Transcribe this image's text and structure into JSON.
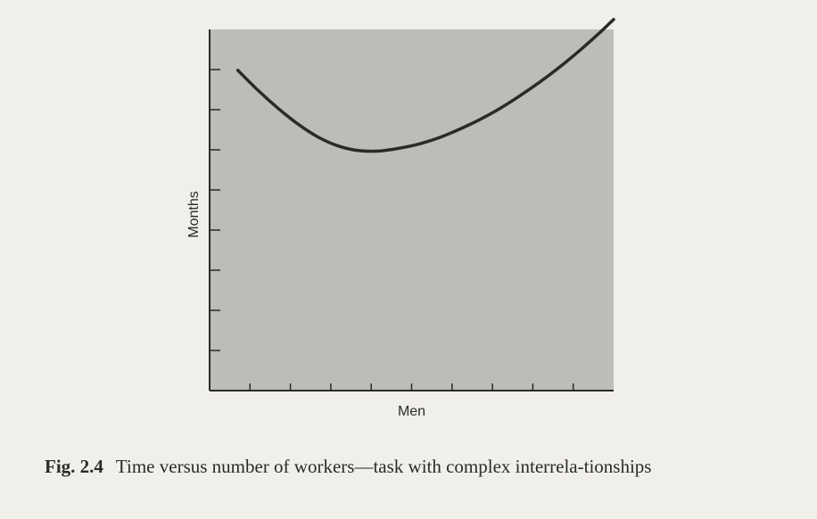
{
  "figure": {
    "number": "Fig. 2.4",
    "caption": "Time versus number of workers—task with complex interrela-tionships"
  },
  "colors": {
    "page_background": "#f1efe9",
    "plot_background": "#bdbcb7",
    "curve": "#2a2a2a",
    "axis": "#2a2a2a"
  },
  "chart_data": {
    "type": "line",
    "title": "",
    "xlabel": "Men",
    "ylabel": "Months",
    "xlim": [
      0,
      10
    ],
    "ylim": [
      0,
      9
    ],
    "x_ticks": [
      1,
      2,
      3,
      4,
      5,
      6,
      7,
      8,
      9
    ],
    "y_ticks": [
      1,
      2,
      3,
      4,
      5,
      6,
      7,
      8
    ],
    "grid": false,
    "legend": "none",
    "series": [
      {
        "x": [
          0.7,
          1.2,
          1.7,
          2.2,
          2.7,
          3.2,
          3.7,
          4.2,
          4.7,
          5.2,
          5.7,
          6.2,
          6.7,
          7.2,
          7.7,
          8.2,
          8.7,
          9.2,
          9.7,
          10.0
        ],
        "values": [
          7.98,
          7.48,
          7.03,
          6.63,
          6.31,
          6.09,
          5.98,
          5.97,
          6.04,
          6.15,
          6.31,
          6.52,
          6.76,
          7.04,
          7.36,
          7.71,
          8.09,
          8.51,
          8.96,
          9.25
        ]
      }
    ]
  }
}
